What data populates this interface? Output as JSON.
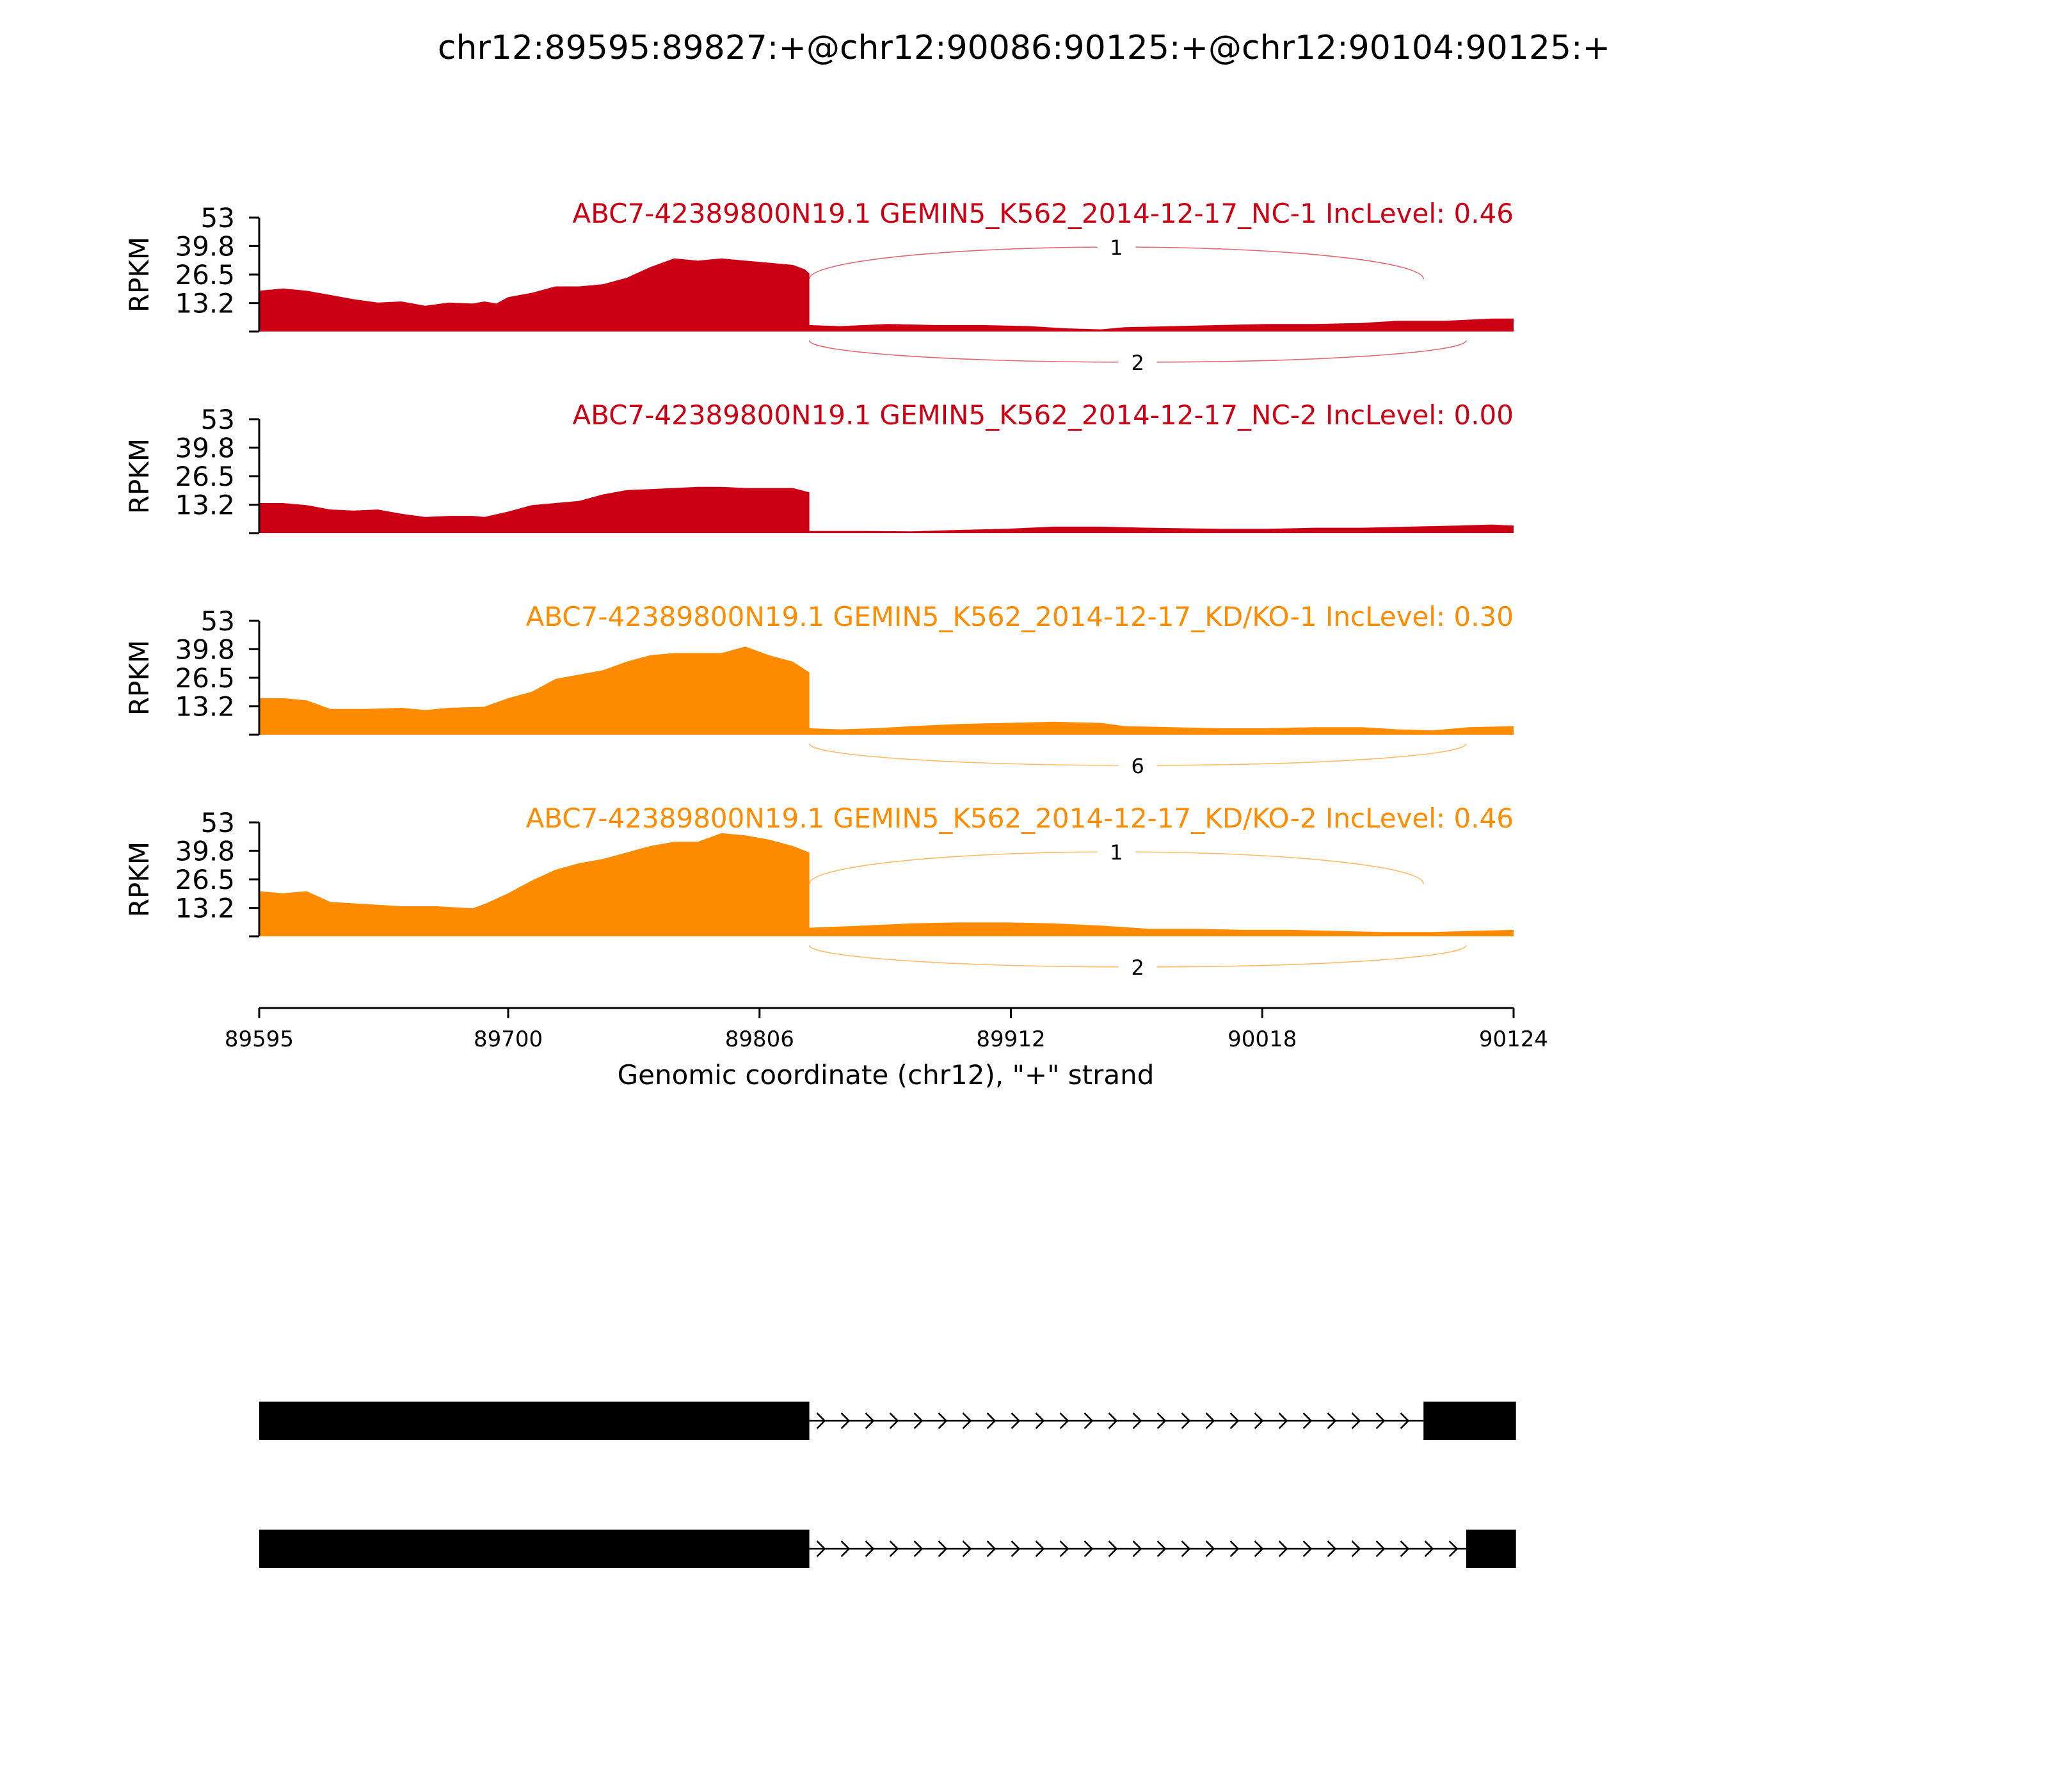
{
  "title": "chr12:89595:89827:+@chr12:90086:90125:+@chr12:90104:90125:+",
  "colors": {
    "nc": "#cc0014",
    "kd": "#ff8c00",
    "gene": "#000000"
  },
  "chart_data": {
    "type": "area",
    "title": "chr12:89595:89827:+@chr12:90086:90125:+@chr12:90104:90125:+",
    "xlabel": "Genomic coordinate (chr12), \"+\" strand",
    "ylabel": "RPKM",
    "xlim": [
      89595,
      90124
    ],
    "x_ticks": [
      89595,
      89700,
      89806,
      89912,
      90018,
      90124
    ],
    "ylim": [
      0,
      53
    ],
    "y_ticks": [
      13.2,
      26.5,
      39.8,
      53
    ],
    "series": [
      {
        "name": "ABC7-42389800N19.1 GEMIN5_K562_2014-12-17_NC-1 IncLevel: 0.46",
        "color": "#cc0014",
        "coverage": [
          [
            89595,
            19
          ],
          [
            89605,
            20
          ],
          [
            89615,
            19
          ],
          [
            89625,
            17
          ],
          [
            89635,
            15
          ],
          [
            89645,
            13.5
          ],
          [
            89655,
            14
          ],
          [
            89665,
            12
          ],
          [
            89675,
            13.5
          ],
          [
            89685,
            13
          ],
          [
            89690,
            14
          ],
          [
            89695,
            13
          ],
          [
            89700,
            16
          ],
          [
            89710,
            18
          ],
          [
            89720,
            21
          ],
          [
            89730,
            21
          ],
          [
            89740,
            22
          ],
          [
            89750,
            25
          ],
          [
            89760,
            30
          ],
          [
            89770,
            34
          ],
          [
            89780,
            33
          ],
          [
            89790,
            34
          ],
          [
            89800,
            33
          ],
          [
            89810,
            32
          ],
          [
            89820,
            31
          ],
          [
            89825,
            29
          ],
          [
            89827,
            27
          ],
          [
            89827,
            3
          ],
          [
            89840,
            2.5
          ],
          [
            89860,
            3.5
          ],
          [
            89880,
            3
          ],
          [
            89900,
            3
          ],
          [
            89920,
            2.5
          ],
          [
            89935,
            1.5
          ],
          [
            89950,
            1
          ],
          [
            89960,
            2
          ],
          [
            89980,
            2.5
          ],
          [
            90000,
            3
          ],
          [
            90020,
            3.5
          ],
          [
            90040,
            3.5
          ],
          [
            90060,
            4
          ],
          [
            90075,
            5
          ],
          [
            90085,
            5
          ],
          [
            90095,
            5
          ],
          [
            90105,
            5.5
          ],
          [
            90115,
            6
          ],
          [
            90124,
            6
          ]
        ],
        "junctions": [
          {
            "start": 89827,
            "end": 90086,
            "count": "1",
            "side": "above"
          },
          {
            "start": 89827,
            "end": 90104,
            "count": "2",
            "side": "below"
          }
        ]
      },
      {
        "name": "ABC7-42389800N19.1 GEMIN5_K562_2014-12-17_NC-2 IncLevel: 0.00",
        "color": "#cc0014",
        "coverage": [
          [
            89595,
            14
          ],
          [
            89605,
            14
          ],
          [
            89615,
            13
          ],
          [
            89625,
            11
          ],
          [
            89635,
            10.5
          ],
          [
            89645,
            11
          ],
          [
            89655,
            9
          ],
          [
            89665,
            7.5
          ],
          [
            89675,
            8
          ],
          [
            89685,
            8
          ],
          [
            89690,
            7.5
          ],
          [
            89700,
            10
          ],
          [
            89710,
            13
          ],
          [
            89720,
            14
          ],
          [
            89730,
            15
          ],
          [
            89740,
            18
          ],
          [
            89750,
            20
          ],
          [
            89760,
            20.5
          ],
          [
            89770,
            21
          ],
          [
            89780,
            21.5
          ],
          [
            89790,
            21.5
          ],
          [
            89800,
            21
          ],
          [
            89810,
            21
          ],
          [
            89820,
            21
          ],
          [
            89827,
            19
          ],
          [
            89827,
            1
          ],
          [
            89850,
            1
          ],
          [
            89870,
            0.8
          ],
          [
            89890,
            1.5
          ],
          [
            89910,
            2
          ],
          [
            89930,
            3
          ],
          [
            89950,
            3
          ],
          [
            89970,
            2.5
          ],
          [
            90000,
            2
          ],
          [
            90020,
            2
          ],
          [
            90040,
            2.5
          ],
          [
            90060,
            2.5
          ],
          [
            90080,
            3
          ],
          [
            90100,
            3.5
          ],
          [
            90115,
            4
          ],
          [
            90124,
            3.5
          ]
        ],
        "junctions": []
      },
      {
        "name": "ABC7-42389800N19.1 GEMIN5_K562_2014-12-17_KD/KO-1 IncLevel: 0.30",
        "color": "#ff8c00",
        "coverage": [
          [
            89595,
            17
          ],
          [
            89605,
            17
          ],
          [
            89615,
            16
          ],
          [
            89625,
            12
          ],
          [
            89640,
            12
          ],
          [
            89655,
            12.5
          ],
          [
            89665,
            11.5
          ],
          [
            89675,
            12.5
          ],
          [
            89690,
            13
          ],
          [
            89700,
            17
          ],
          [
            89710,
            20
          ],
          [
            89720,
            26
          ],
          [
            89730,
            28
          ],
          [
            89740,
            30
          ],
          [
            89750,
            34
          ],
          [
            89760,
            37
          ],
          [
            89770,
            38
          ],
          [
            89780,
            38
          ],
          [
            89790,
            38
          ],
          [
            89800,
            41
          ],
          [
            89810,
            37
          ],
          [
            89820,
            34
          ],
          [
            89827,
            29
          ],
          [
            89827,
            3
          ],
          [
            89840,
            2.5
          ],
          [
            89855,
            3
          ],
          [
            89870,
            4
          ],
          [
            89890,
            5
          ],
          [
            89910,
            5.5
          ],
          [
            89930,
            6
          ],
          [
            89950,
            5.5
          ],
          [
            89960,
            4
          ],
          [
            89980,
            3.5
          ],
          [
            90000,
            3
          ],
          [
            90020,
            3
          ],
          [
            90040,
            3.5
          ],
          [
            90060,
            3.5
          ],
          [
            90075,
            2.5
          ],
          [
            90090,
            2
          ],
          [
            90105,
            3.5
          ],
          [
            90124,
            4
          ]
        ],
        "junctions": [
          {
            "start": 89827,
            "end": 90104,
            "count": "6",
            "side": "below"
          }
        ]
      },
      {
        "name": "ABC7-42389800N19.1 GEMIN5_K562_2014-12-17_KD/KO-2 IncLevel: 0.46",
        "color": "#ff8c00",
        "coverage": [
          [
            89595,
            21
          ],
          [
            89605,
            20
          ],
          [
            89615,
            21
          ],
          [
            89625,
            16
          ],
          [
            89640,
            15
          ],
          [
            89655,
            14
          ],
          [
            89670,
            14
          ],
          [
            89685,
            13
          ],
          [
            89690,
            15
          ],
          [
            89700,
            20
          ],
          [
            89710,
            26
          ],
          [
            89720,
            31
          ],
          [
            89730,
            34
          ],
          [
            89740,
            36
          ],
          [
            89750,
            39
          ],
          [
            89760,
            42
          ],
          [
            89770,
            44
          ],
          [
            89780,
            44
          ],
          [
            89790,
            48
          ],
          [
            89800,
            47
          ],
          [
            89810,
            45
          ],
          [
            89820,
            42
          ],
          [
            89827,
            39
          ],
          [
            89827,
            4
          ],
          [
            89850,
            5
          ],
          [
            89870,
            6
          ],
          [
            89890,
            6.5
          ],
          [
            89910,
            6.5
          ],
          [
            89930,
            6
          ],
          [
            89950,
            5
          ],
          [
            89970,
            3.5
          ],
          [
            89990,
            3.5
          ],
          [
            90010,
            3
          ],
          [
            90030,
            3
          ],
          [
            90050,
            2.5
          ],
          [
            90070,
            2
          ],
          [
            90090,
            2
          ],
          [
            90105,
            2.5
          ],
          [
            90124,
            3
          ]
        ],
        "junctions": [
          {
            "start": 89827,
            "end": 90086,
            "count": "1",
            "side": "above"
          },
          {
            "start": 89827,
            "end": 90104,
            "count": "2",
            "side": "below"
          }
        ]
      }
    ],
    "isoforms": [
      {
        "exons": [
          [
            89595,
            89827
          ],
          [
            90086,
            90125
          ]
        ]
      },
      {
        "exons": [
          [
            89595,
            89827
          ],
          [
            90104,
            90125
          ]
        ]
      }
    ]
  }
}
